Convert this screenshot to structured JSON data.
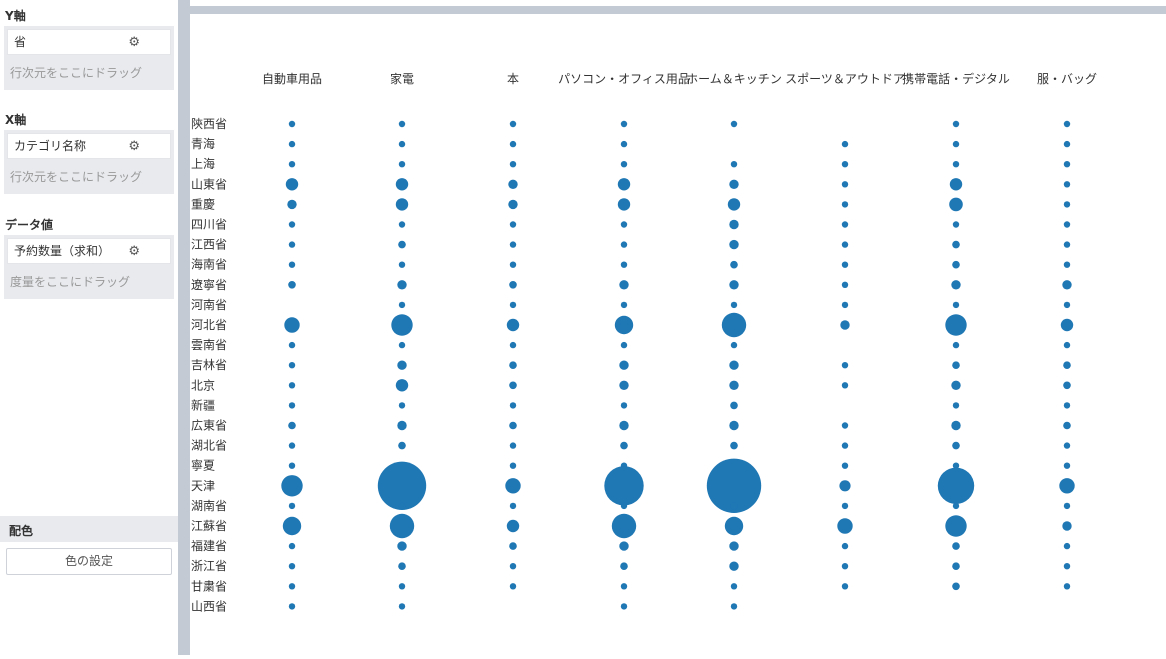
{
  "panel": {
    "y_axis": {
      "title": "Y軸",
      "field": "省",
      "hint": "行次元をここにドラッグ"
    },
    "x_axis": {
      "title": "X軸",
      "field": "カテゴリ名称",
      "hint": "行次元をここにドラッグ"
    },
    "data_value": {
      "title": "データ値",
      "field": "予約数量（求和）",
      "hint": "度量をここにドラッグ"
    },
    "color": {
      "title": "配色",
      "button": "色の設定"
    },
    "gear_icon": "⚙"
  },
  "chart_data": {
    "type": "scatter",
    "categories": [
      "自動車用品",
      "家電",
      "本",
      "パソコン・オフィス用品",
      "ホーム＆キッチン",
      "スポーツ＆アウトドア",
      "携帯電話・デジタル",
      "服・バッグ"
    ],
    "provinces": [
      "陝西省",
      "青海",
      "上海",
      "山東省",
      "重慶",
      "四川省",
      "江西省",
      "海南省",
      "遼寧省",
      "河南省",
      "河北省",
      "雲南省",
      "吉林省",
      "北京",
      "新疆",
      "広東省",
      "湖北省",
      "寧夏",
      "天津",
      "湖南省",
      "江蘇省",
      "福建省",
      "浙江省",
      "甘粛省",
      "山西省"
    ],
    "values": [
      [
        1,
        1,
        1,
        1,
        1,
        0,
        1,
        1
      ],
      [
        1,
        1,
        1,
        1,
        0,
        1,
        1,
        1
      ],
      [
        1,
        1,
        1,
        1,
        1,
        1,
        1,
        1
      ],
      [
        2,
        2,
        1.5,
        2,
        1.5,
        1,
        2,
        1
      ],
      [
        1.5,
        2,
        1.5,
        2,
        2,
        1,
        2.2,
        1
      ],
      [
        1,
        1,
        1,
        1,
        1.5,
        1,
        1,
        1
      ],
      [
        1,
        1.2,
        1,
        1,
        1.5,
        1,
        1.2,
        1
      ],
      [
        1,
        1,
        1,
        1,
        1.2,
        1,
        1.2,
        1
      ],
      [
        1.2,
        1.5,
        1.2,
        1.5,
        1.5,
        1,
        1.5,
        1.5
      ],
      [
        0,
        1,
        1,
        1,
        1,
        1,
        1,
        1
      ],
      [
        2.5,
        3.5,
        2,
        3,
        4,
        1.5,
        3.5,
        2
      ],
      [
        1,
        1,
        1,
        1,
        1,
        0,
        1,
        1
      ],
      [
        1,
        1.5,
        1.2,
        1.5,
        1.5,
        1,
        1.2,
        1.2
      ],
      [
        1,
        2,
        1.2,
        1.5,
        1.5,
        1,
        1.5,
        1.2
      ],
      [
        1,
        1,
        1,
        1,
        1.2,
        0,
        1,
        1
      ],
      [
        1.2,
        1.5,
        1.2,
        1.5,
        1.5,
        1,
        1.5,
        1.2
      ],
      [
        1,
        1.2,
        1,
        1.2,
        1.2,
        1,
        1.2,
        1
      ],
      [
        1,
        1,
        1,
        1,
        1,
        1,
        1,
        1
      ],
      [
        3.5,
        8,
        2.5,
        6.5,
        9,
        1.8,
        6,
        2.5
      ],
      [
        1,
        1,
        1,
        1,
        1.2,
        1,
        1,
        1
      ],
      [
        3,
        4,
        2,
        4,
        3,
        2.5,
        3.5,
        1.5
      ],
      [
        1,
        1.5,
        1.2,
        1.5,
        1.5,
        1,
        1.2,
        1
      ],
      [
        1,
        1.2,
        1,
        1.2,
        1.5,
        1,
        1.2,
        1
      ],
      [
        1,
        1,
        1,
        1,
        1,
        1,
        1.2,
        1
      ],
      [
        1,
        1,
        0,
        1,
        1,
        0,
        0,
        0
      ]
    ],
    "color": "#1f77b4",
    "xlabel": "",
    "ylabel": ""
  }
}
